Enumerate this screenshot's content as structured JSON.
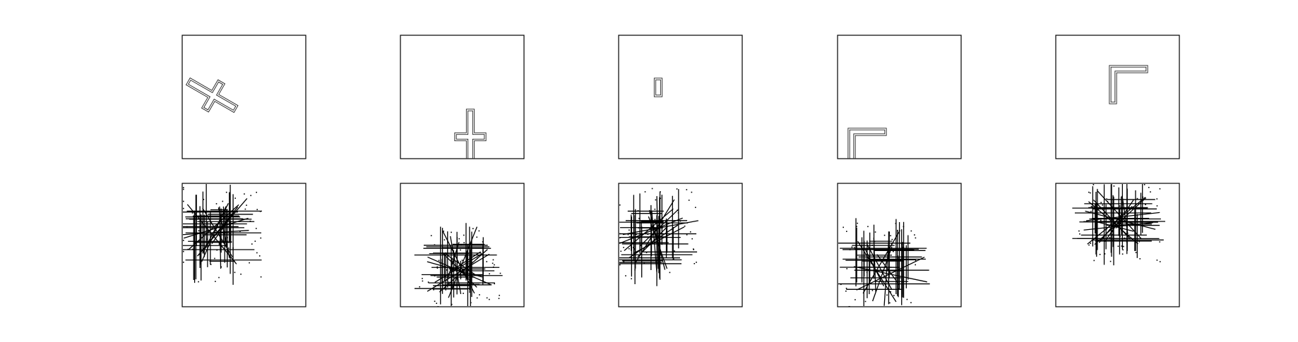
{
  "figure": {
    "rows": 2,
    "columns": 5,
    "background": "#ffffff",
    "frame_color": "#000000",
    "shape_color": "#202020",
    "panels_top": [
      {
        "name": "rotated-cross",
        "shape": "cross",
        "rotation_deg": 30
      },
      {
        "name": "upright-cross",
        "shape": "cross",
        "rotation_deg": 0
      },
      {
        "name": "small-bar",
        "shape": "bar",
        "rotation_deg": 0
      },
      {
        "name": "corner-l",
        "shape": "corner",
        "rotation_deg": 0
      },
      {
        "name": "corner-l-2",
        "shape": "corner",
        "rotation_deg": 0
      }
    ],
    "panels_bottom": [
      {
        "name": "noisy-pattern-1",
        "shape": "line-cluster"
      },
      {
        "name": "noisy-pattern-2",
        "shape": "line-cluster"
      },
      {
        "name": "noisy-pattern-3",
        "shape": "line-cluster"
      },
      {
        "name": "noisy-pattern-4",
        "shape": "line-cluster"
      },
      {
        "name": "noisy-pattern-5",
        "shape": "line-cluster"
      }
    ]
  }
}
